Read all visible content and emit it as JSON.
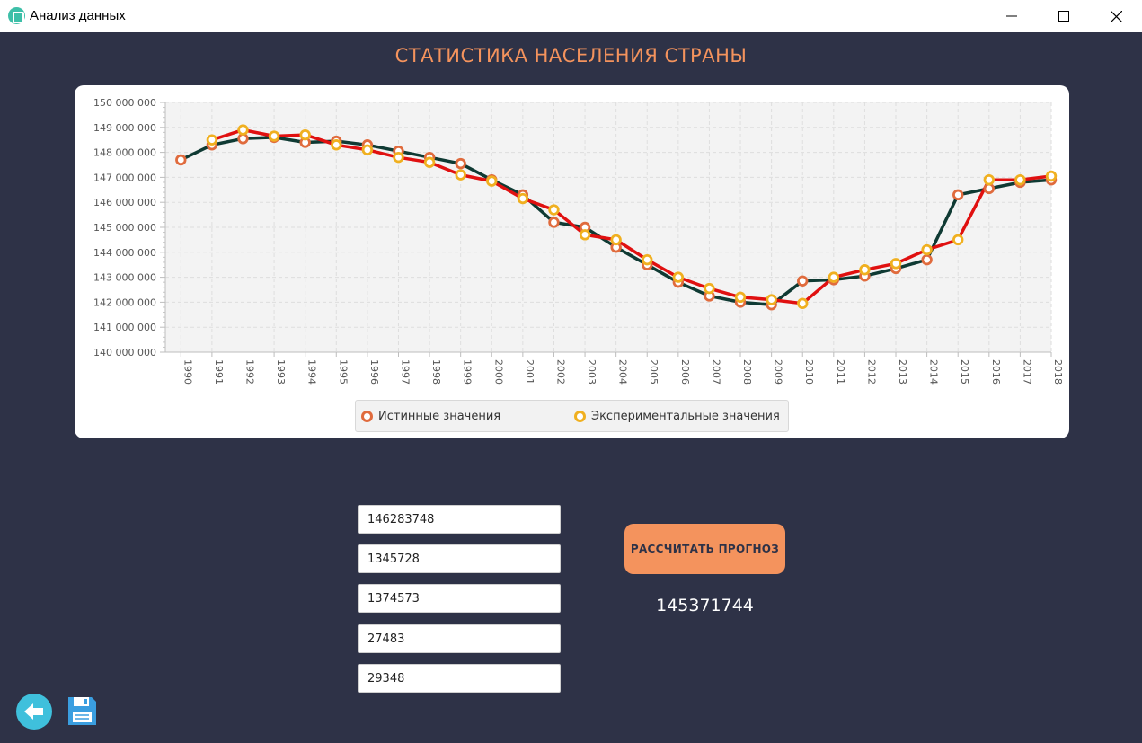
{
  "window": {
    "title": "Анализ данных"
  },
  "page": {
    "title": "СТАТИСТИКА НАСЕЛЕНИЯ СТРАНЫ"
  },
  "chart_data": {
    "type": "line",
    "title": "",
    "xlabel": "",
    "ylabel": "",
    "categories": [
      "1990",
      "1991",
      "1992",
      "1993",
      "1994",
      "1995",
      "1996",
      "1997",
      "1998",
      "1999",
      "2000",
      "2001",
      "2002",
      "2003",
      "2004",
      "2005",
      "2006",
      "2007",
      "2008",
      "2009",
      "2010",
      "2011",
      "2012",
      "2013",
      "2014",
      "2015",
      "2016",
      "2017",
      "2018"
    ],
    "ylim": [
      140000000,
      150000000
    ],
    "yticks": [
      "140 000 000",
      "141 000 000",
      "142 000 000",
      "143 000 000",
      "144 000 000",
      "145 000 000",
      "146 000 000",
      "147 000 000",
      "148 000 000",
      "149 000 000",
      "150 000 000"
    ],
    "grid": true,
    "legend_position": "bottom",
    "series": [
      {
        "name": "Истинные значения",
        "line_color": "#0f3a33",
        "marker_color": "#e06b3d",
        "values": [
          147700000,
          148300000,
          148550000,
          148600000,
          148400000,
          148450000,
          148300000,
          148050000,
          147800000,
          147550000,
          146900000,
          146300000,
          145200000,
          145000000,
          144200000,
          143500000,
          142800000,
          142250000,
          142000000,
          141900000,
          142850000,
          142900000,
          143050000,
          143350000,
          143700000,
          146300000,
          146550000,
          146800000,
          146900000
        ]
      },
      {
        "name": "Экспериментальные значения",
        "line_color": "#e01010",
        "marker_color": "#f0b020",
        "values": [
          null,
          148500000,
          148900000,
          148650000,
          148700000,
          148300000,
          148100000,
          147800000,
          147600000,
          147100000,
          146850000,
          146150000,
          145700000,
          144700000,
          144500000,
          143700000,
          143000000,
          142550000,
          142200000,
          142100000,
          141950000,
          143000000,
          143300000,
          143550000,
          144100000,
          144500000,
          146900000,
          146900000,
          147050000
        ]
      }
    ]
  },
  "form": {
    "field1": "146283748",
    "field2": "1345728",
    "field3": "1374573",
    "field4": "27483",
    "field5": "29348"
  },
  "calc_button": {
    "label": "РАССЧИТАТЬ ПРОГНОЗ"
  },
  "result": {
    "value": "145371744"
  },
  "colors": {
    "background": "#2e3247",
    "accent": "#f4935d",
    "back_button": "#3fc0dc",
    "save_icon": "#3a9ee0"
  },
  "icons": {
    "back": "back-arrow-icon",
    "save": "floppy-disk-icon",
    "app": "app-icon"
  }
}
